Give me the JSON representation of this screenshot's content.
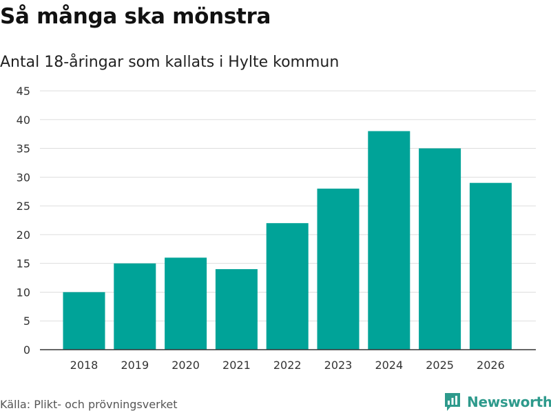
{
  "title": "Så många ska mönstra",
  "subtitle": "Antal 18-åringar som kallats i Hylte kommun",
  "source": "Källa: Plikt- och prövningsverket",
  "brand": {
    "name": "Newsworthy",
    "icon": "newsworthy-logo-icon",
    "color": "#2e9a8c"
  },
  "colors": {
    "bar": "#00a398",
    "grid": "#dddddd",
    "axis": "#333333"
  },
  "chart_data": {
    "type": "bar",
    "title": "Så många ska mönstra",
    "subtitle": "Antal 18-åringar som kallats i Hylte kommun",
    "xlabel": "",
    "ylabel": "",
    "categories": [
      "2018",
      "2019",
      "2020",
      "2021",
      "2022",
      "2023",
      "2024",
      "2025",
      "2026"
    ],
    "values": [
      10,
      15,
      16,
      14,
      22,
      28,
      38,
      35,
      29
    ],
    "ylim": [
      0,
      45
    ],
    "yticks": [
      0,
      5,
      10,
      15,
      20,
      25,
      30,
      35,
      40,
      45
    ],
    "grid": true,
    "legend": "none"
  }
}
